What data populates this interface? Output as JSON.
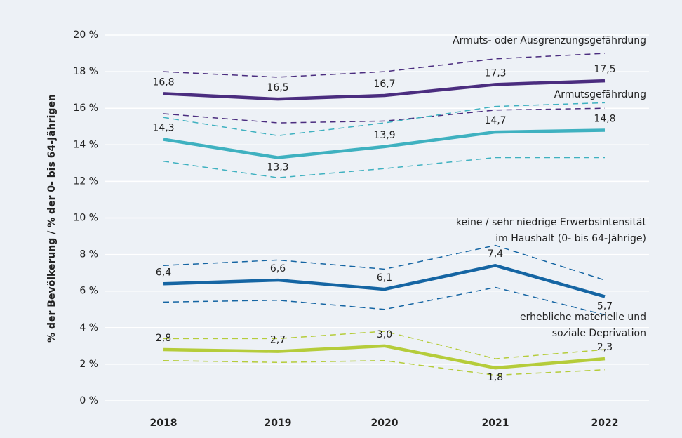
{
  "chart_data": {
    "type": "line",
    "y_label": "% der Bevölkerung / % der 0- bis 64-Jährigen",
    "categories": [
      "2018",
      "2019",
      "2020",
      "2021",
      "2022"
    ],
    "ylim": [
      0,
      20
    ],
    "yticks": [
      {
        "value": 0,
        "label": "0 %"
      },
      {
        "value": 2,
        "label": "2 %"
      },
      {
        "value": 4,
        "label": "4 %"
      },
      {
        "value": 6,
        "label": "6 %"
      },
      {
        "value": 8,
        "label": "8 %"
      },
      {
        "value": 10,
        "label": "10 %"
      },
      {
        "value": 12,
        "label": "12 %"
      },
      {
        "value": 14,
        "label": "14 %"
      },
      {
        "value": 16,
        "label": "16 %"
      },
      {
        "value": 18,
        "label": "18 %"
      },
      {
        "value": 20,
        "label": "20 %"
      }
    ],
    "grid": true,
    "series": [
      {
        "name": [
          "Armuts- oder Ausgrenzungsgefährdung"
        ],
        "color": "#4b2d7f",
        "values": [
          16.8,
          16.5,
          16.7,
          17.3,
          17.5
        ],
        "value_labels": [
          "16,8",
          "16,5",
          "16,7",
          "17,3",
          "17,5"
        ],
        "upper": [
          18.0,
          17.7,
          18.0,
          18.7,
          19.0
        ],
        "lower": [
          15.7,
          15.2,
          15.3,
          15.9,
          16.0
        ]
      },
      {
        "name": [
          "Armutsgefährdung"
        ],
        "color": "#3fb1c0",
        "values": [
          14.3,
          13.3,
          13.9,
          14.7,
          14.8
        ],
        "value_labels": [
          "14,3",
          "13,3",
          "13,9",
          "14,7",
          "14,8"
        ],
        "upper": [
          15.5,
          14.5,
          15.2,
          16.1,
          16.3
        ],
        "lower": [
          13.1,
          12.2,
          12.7,
          13.3,
          13.3
        ]
      },
      {
        "name": [
          "keine / sehr niedrige Erwerbsintensität",
          "im Haushalt (0- bis 64-Jährige)"
        ],
        "color": "#1565a3",
        "values": [
          6.4,
          6.6,
          6.1,
          7.4,
          5.7
        ],
        "value_labels": [
          "6,4",
          "6,6",
          "6,1",
          "7,4",
          "5,7"
        ],
        "upper": [
          7.4,
          7.7,
          7.2,
          8.5,
          6.6
        ],
        "lower": [
          5.4,
          5.5,
          5.0,
          6.2,
          4.7
        ]
      },
      {
        "name": [
          "erhebliche materielle und",
          "soziale Deprivation"
        ],
        "color": "#b5cc3a",
        "values": [
          2.8,
          2.7,
          3.0,
          1.8,
          2.3
        ],
        "value_labels": [
          "2,8",
          "2,7",
          "3,0",
          "1,8",
          "2,3"
        ],
        "upper": [
          3.4,
          3.4,
          3.8,
          2.3,
          2.8
        ],
        "lower": [
          2.2,
          2.1,
          2.2,
          1.4,
          1.7
        ]
      }
    ]
  }
}
